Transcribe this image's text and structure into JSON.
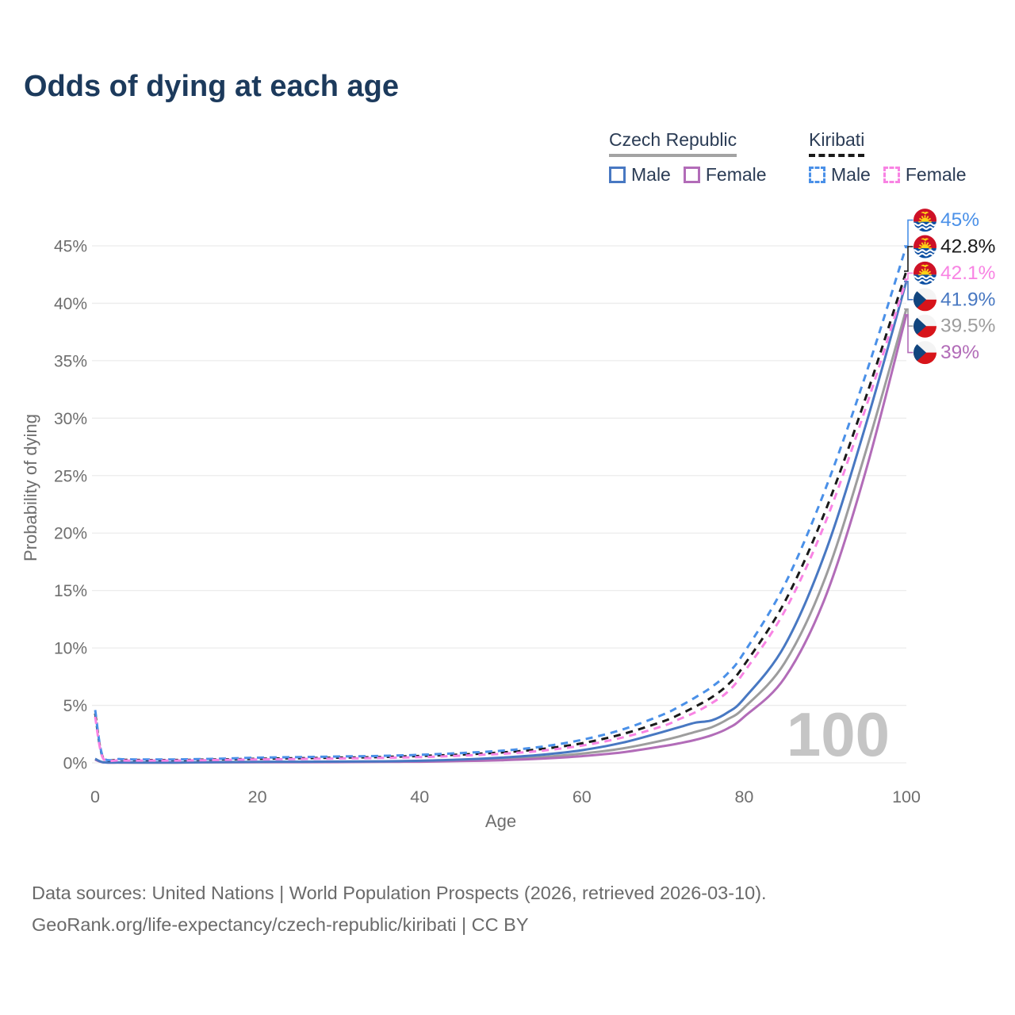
{
  "title": "Odds of dying at each age",
  "legend": {
    "groups": [
      {
        "name": "Czech Republic",
        "line_style": "solid",
        "underline_color": "#a3a3a3",
        "items": [
          {
            "label": "Male",
            "color": "#4878c2"
          },
          {
            "label": "Female",
            "color": "#b26cb8"
          }
        ]
      },
      {
        "name": "Kiribati",
        "line_style": "dashed",
        "underline_color": "#1a1a1a",
        "items": [
          {
            "label": "Male",
            "color": "#4a90e8"
          },
          {
            "label": "Female",
            "color": "#f883e3"
          }
        ]
      }
    ]
  },
  "watermark": "100",
  "footer": {
    "line1": "Data sources: United Nations | World Population Prospects (2026, retrieved 2026-03-10).",
    "line2": "GeoRank.org/life-expectancy/czech-republic/kiribati | CC BY"
  },
  "chart_data": {
    "type": "line",
    "title": "Odds of dying at each age",
    "xlabel": "Age",
    "ylabel": "Probability of dying",
    "xlim": [
      0,
      100
    ],
    "ylim_percent": [
      0,
      45
    ],
    "x_ticks": [
      0,
      20,
      40,
      60,
      80,
      100
    ],
    "y_ticks_percent": [
      0,
      5,
      10,
      15,
      20,
      25,
      30,
      35,
      40,
      45
    ],
    "grid": "horizontal",
    "legend_position": "top-right",
    "hover_age": "100",
    "ages": [
      0,
      1,
      3,
      5,
      10,
      15,
      20,
      25,
      30,
      35,
      40,
      45,
      50,
      55,
      60,
      65,
      70,
      72,
      74,
      76,
      78,
      80,
      85,
      90,
      95,
      100
    ],
    "series": [
      {
        "id": "kiribati-male",
        "name": "Kiribati Male",
        "country": "Kiribati",
        "sex": "Male",
        "flag": "kiribati",
        "color": "#4a90e8",
        "dash": true,
        "end_label": "45%",
        "values_percent": [
          4.6,
          0.45,
          0.33,
          0.3,
          0.3,
          0.35,
          0.45,
          0.5,
          0.55,
          0.6,
          0.7,
          0.85,
          1.05,
          1.4,
          2.0,
          2.9,
          4.2,
          4.9,
          5.7,
          6.6,
          7.8,
          9.6,
          15.5,
          23.8,
          33.8,
          45.0
        ]
      },
      {
        "id": "kiribati-both",
        "name": "Kiribati Both sexes",
        "country": "Kiribati",
        "sex": "Both",
        "flag": "kiribati",
        "color": "#1a1a1a",
        "dash": true,
        "end_label": "42.8%",
        "values_percent": [
          4.3,
          0.4,
          0.28,
          0.25,
          0.25,
          0.3,
          0.35,
          0.4,
          0.45,
          0.5,
          0.6,
          0.72,
          0.9,
          1.2,
          1.7,
          2.5,
          3.6,
          4.2,
          4.9,
          5.7,
          6.8,
          8.5,
          14.0,
          21.9,
          31.8,
          42.8
        ]
      },
      {
        "id": "kiribati-female",
        "name": "Kiribati Female",
        "country": "Kiribati",
        "sex": "Female",
        "flag": "kiribati",
        "color": "#f883e3",
        "dash": true,
        "end_label": "42.1%",
        "values_percent": [
          4.0,
          0.35,
          0.22,
          0.2,
          0.2,
          0.25,
          0.3,
          0.33,
          0.38,
          0.43,
          0.5,
          0.62,
          0.78,
          1.05,
          1.5,
          2.2,
          3.2,
          3.8,
          4.4,
          5.2,
          6.2,
          7.9,
          13.2,
          20.9,
          30.9,
          42.1
        ]
      },
      {
        "id": "czech-male",
        "name": "Czech Republic Male",
        "country": "Czech Republic",
        "sex": "Male",
        "flag": "czech",
        "color": "#4878c2",
        "dash": false,
        "end_label": "41.9%",
        "values_percent": [
          0.35,
          0.05,
          0.035,
          0.03,
          0.03,
          0.06,
          0.09,
          0.1,
          0.11,
          0.13,
          0.18,
          0.28,
          0.45,
          0.7,
          1.1,
          1.75,
          2.7,
          3.1,
          3.5,
          3.7,
          4.4,
          5.6,
          10.2,
          18.3,
          29.4,
          41.9
        ]
      },
      {
        "id": "czech-both",
        "name": "Czech Republic Both sexes",
        "country": "Czech Republic",
        "sex": "Both",
        "flag": "czech",
        "color": "#9d9d9d",
        "dash": false,
        "end_label": "39.5%",
        "values_percent": [
          0.3,
          0.045,
          0.028,
          0.025,
          0.025,
          0.05,
          0.06,
          0.07,
          0.08,
          0.1,
          0.13,
          0.2,
          0.32,
          0.5,
          0.8,
          1.25,
          1.95,
          2.3,
          2.7,
          3.1,
          3.8,
          4.8,
          8.7,
          16.1,
          27.1,
          39.5
        ]
      },
      {
        "id": "czech-female",
        "name": "Czech Republic Female",
        "country": "Czech Republic",
        "sex": "Female",
        "flag": "czech",
        "color": "#b26cb8",
        "dash": false,
        "end_label": "39%",
        "values_percent": [
          0.28,
          0.04,
          0.022,
          0.02,
          0.02,
          0.04,
          0.05,
          0.05,
          0.06,
          0.08,
          0.1,
          0.15,
          0.23,
          0.36,
          0.58,
          0.92,
          1.45,
          1.7,
          2.0,
          2.4,
          3.0,
          4.0,
          7.4,
          14.4,
          25.4,
          39.0
        ]
      }
    ],
    "colors": {
      "grid": "#ececec",
      "axis_text": "#6e6e6e",
      "watermark": "#c5c5c5",
      "flag_kiribati_red": "#ce1126",
      "flag_kiribati_gold": "#fcd116",
      "flag_kiribati_blue": "#0b4ea2",
      "flag_czech_white": "#f4f4f4",
      "flag_czech_red": "#d7141a",
      "flag_czech_blue": "#11457e"
    }
  }
}
